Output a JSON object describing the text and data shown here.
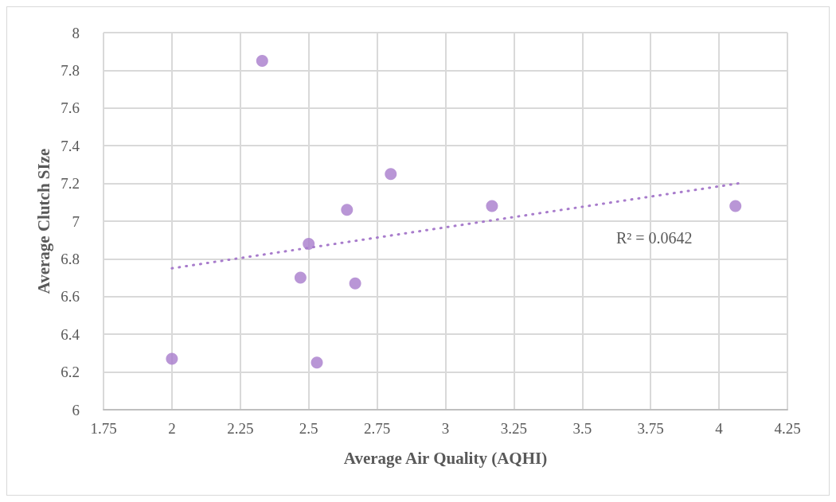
{
  "chart_data": {
    "type": "scatter",
    "xlabel": "Average Air Quality (AQHI)",
    "ylabel": "Average Clutch SIze",
    "xlim": [
      1.75,
      4.25
    ],
    "xticks": [
      1.75,
      2,
      2.25,
      2.5,
      2.75,
      3,
      3.25,
      3.5,
      3.75,
      4,
      4.25
    ],
    "ylim": [
      6,
      8
    ],
    "yticks": [
      6,
      6.2,
      6.4,
      6.6,
      6.8,
      7,
      7.2,
      7.4,
      7.6,
      7.8,
      8
    ],
    "grid": true,
    "marker": "circle",
    "series": [
      {
        "color": "#a87ccc",
        "x": [
          2,
          2.33,
          2.47,
          2.5,
          2.53,
          2.64,
          2.67,
          2.8,
          3.17,
          4.06
        ],
        "values": [
          6.27,
          7.85,
          6.7,
          6.88,
          6.25,
          7.06,
          6.67,
          7.25,
          7.08,
          7.08
        ]
      },
      {
        "type": "line",
        "color": "#a87ccc",
        "line_style": "dotted",
        "marker": "none",
        "x": [
          2,
          4.07
        ],
        "values": [
          6.75,
          7.2
        ]
      }
    ],
    "annotations": [
      "R² = 0.0642"
    ]
  }
}
